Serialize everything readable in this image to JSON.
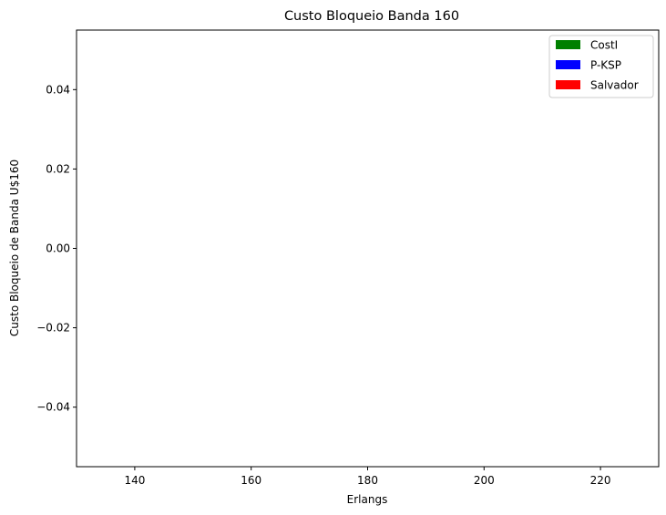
{
  "chart_data": {
    "type": "bar",
    "title": "Custo Bloqueio Banda 160",
    "xlabel": "Erlangs",
    "ylabel": "Custo Bloqueio de Banda U$160",
    "xlim": [
      130,
      230
    ],
    "ylim": [
      -0.055,
      0.055
    ],
    "xticks": [
      140,
      160,
      180,
      200,
      220
    ],
    "xtick_labels": [
      "140",
      "160",
      "180",
      "200",
      "220"
    ],
    "yticks": [
      0.04,
      0.02,
      0.0,
      -0.02,
      -0.04
    ],
    "ytick_labels": [
      "0.04",
      "0.02",
      "0.00",
      "−0.02",
      "−0.04"
    ],
    "grid": false,
    "legend_position": "top-right",
    "series": [
      {
        "name": "CostI",
        "color": "#008000",
        "values": []
      },
      {
        "name": "P-KSP",
        "color": "#0000ff",
        "values": []
      },
      {
        "name": "Salvador",
        "color": "#ff0000",
        "values": []
      }
    ]
  }
}
